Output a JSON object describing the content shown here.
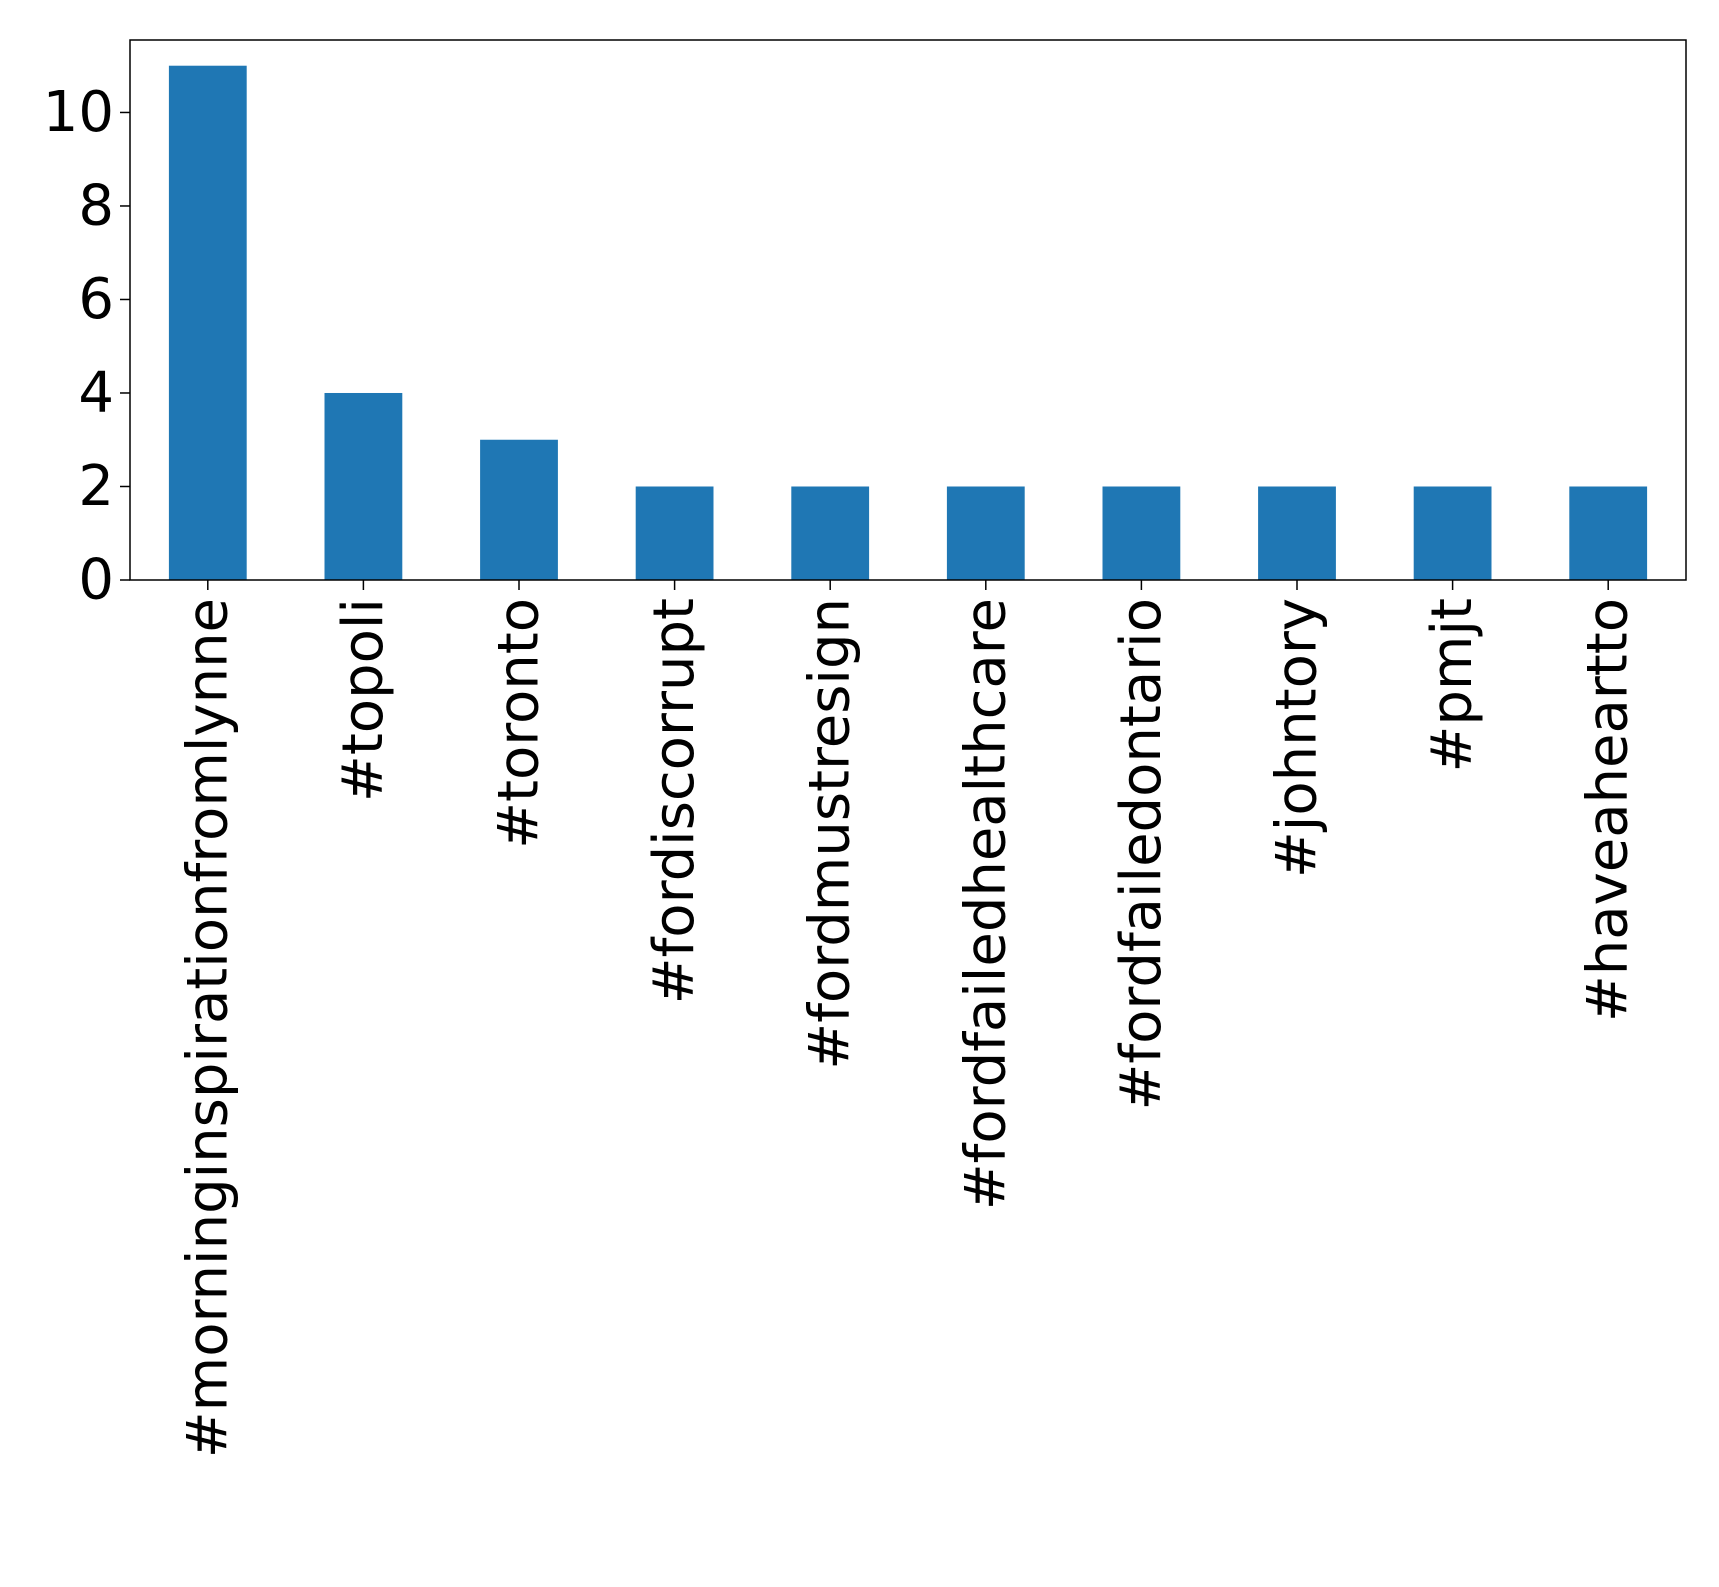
{
  "chart_data": {
    "type": "bar",
    "title": "",
    "xlabel": "",
    "ylabel": "",
    "categories": [
      "#morninginspirationfromlynne",
      "#topoli",
      "#toronto",
      "#fordiscorrupt",
      "#fordmustresign",
      "#fordfailedhealthcare",
      "#fordfailedontario",
      "#johntory",
      "#pmjt",
      "#haveaheartto"
    ],
    "values": [
      11,
      4,
      3,
      2,
      2,
      2,
      2,
      2,
      2,
      2
    ],
    "ylim": [
      0,
      11.55
    ],
    "yticks": [
      0,
      2,
      4,
      6,
      8,
      10
    ],
    "bar_color": "#1f77b4",
    "grid": false,
    "legend": "none"
  }
}
